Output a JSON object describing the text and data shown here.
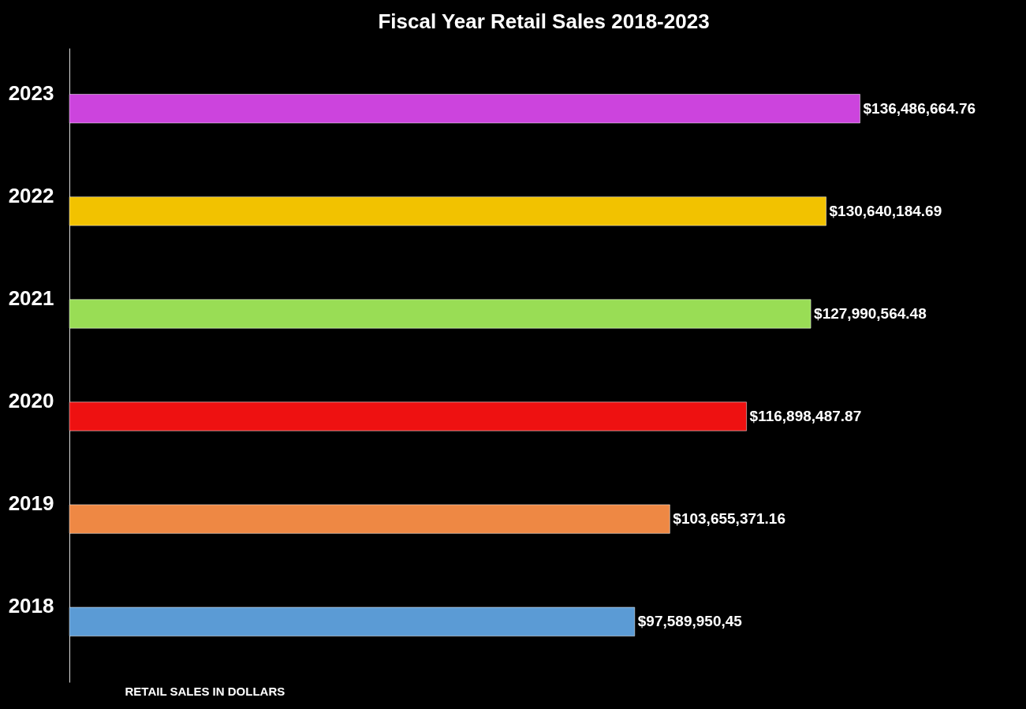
{
  "chart_data": {
    "type": "bar",
    "orientation": "horizontal",
    "title": "Fiscal Year Retail Sales 2018-2023",
    "xlabel": "RETAIL SALES IN DOLLARS",
    "categories": [
      "2023",
      "2022",
      "2021",
      "2020",
      "2019",
      "2018"
    ],
    "values": [
      136486664.76,
      130640184.69,
      127990564.48,
      116898487.87,
      103655371.16,
      97589950.45
    ],
    "value_labels": [
      "$136,486,664.76",
      "$130,640,184.69",
      "$127,990,564.48",
      "$116,898,487.87",
      "$103,655,371.16",
      "$97,589,950,45"
    ],
    "colors": [
      "#cc44dd",
      "#f2c200",
      "#99dd55",
      "#ee1111",
      "#ee8844",
      "#5b9bd5"
    ],
    "grid": false
  }
}
